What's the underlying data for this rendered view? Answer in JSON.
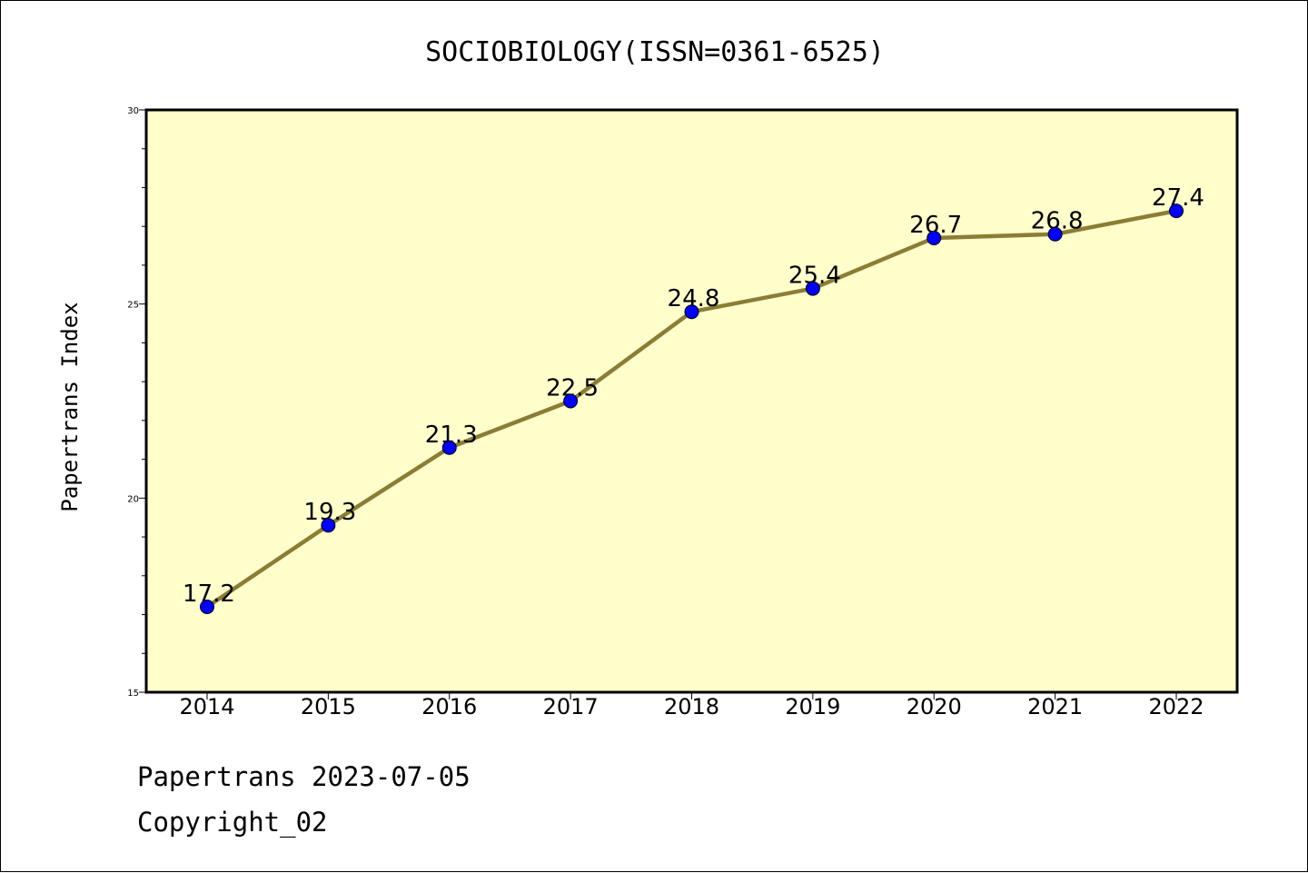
{
  "chart_data": {
    "type": "line",
    "title": "SOCIOBIOLOGY(ISSN=0361-6525)",
    "xlabel": "",
    "ylabel": "Papertrans Index",
    "x": [
      "2014",
      "2015",
      "2016",
      "2017",
      "2018",
      "2019",
      "2020",
      "2021",
      "2022"
    ],
    "series": [
      {
        "values": [
          17.2,
          19.3,
          21.3,
          22.5,
          24.8,
          25.4,
          26.7,
          26.8,
          27.4
        ],
        "labels": [
          "17.2",
          "19.3",
          "21.3",
          "22.5",
          "24.8",
          "25.4",
          "26.7",
          "26.8",
          "27.4"
        ]
      }
    ],
    "ylim": [
      15,
      30
    ],
    "yticks": [
      "15",
      "20",
      "25",
      "30"
    ],
    "grid": false,
    "colors": {
      "plot_bg": "#ffffcc",
      "line": "#8b7d35",
      "marker": "#0000ff"
    }
  },
  "footer": {
    "line1": "Papertrans 2023-07-05",
    "line2": "Copyright_02"
  }
}
